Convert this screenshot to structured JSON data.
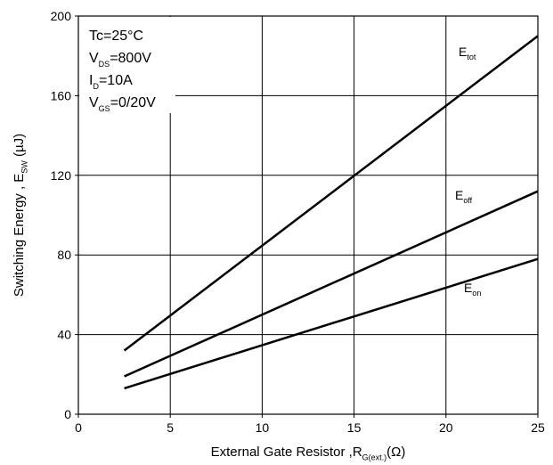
{
  "chart_data": {
    "type": "line",
    "x": [
      2.5,
      25
    ],
    "series": [
      {
        "name": "E",
        "subscript": "tot",
        "color": "#000000",
        "values": [
          32,
          190
        ]
      },
      {
        "name": "E",
        "subscript": "off",
        "color": "#000000",
        "values": [
          19,
          112
        ]
      },
      {
        "name": "E",
        "subscript": "on",
        "color": "#000000",
        "values": [
          13,
          78
        ]
      }
    ],
    "xlim": [
      0,
      25
    ],
    "xticks": [
      0,
      5,
      10,
      15,
      20,
      25
    ],
    "ylim": [
      0,
      200
    ],
    "yticks": [
      0,
      40,
      80,
      120,
      160,
      200
    ],
    "grid": true,
    "x_label": [
      {
        "t": "External Gate Resistor ,R"
      },
      {
        "t": "G(ext.)",
        "sub": true
      },
      {
        "t": "(Ω)"
      }
    ],
    "y_label": [
      {
        "t": "Switching Energy , E"
      },
      {
        "t": "SW",
        "sub": true
      },
      {
        "t": " (µJ)"
      }
    ],
    "annotation": [
      [
        {
          "t": "Tc=25°C"
        }
      ],
      [
        {
          "t": "V"
        },
        {
          "t": "DS",
          "sub": true
        },
        {
          "t": "=800V"
        }
      ],
      [
        {
          "t": "I"
        },
        {
          "t": "D",
          "sub": true
        },
        {
          "t": "=10A"
        }
      ],
      [
        {
          "t": "V"
        },
        {
          "t": "GS",
          "sub": true
        },
        {
          "t": "=0/20V"
        }
      ]
    ]
  }
}
